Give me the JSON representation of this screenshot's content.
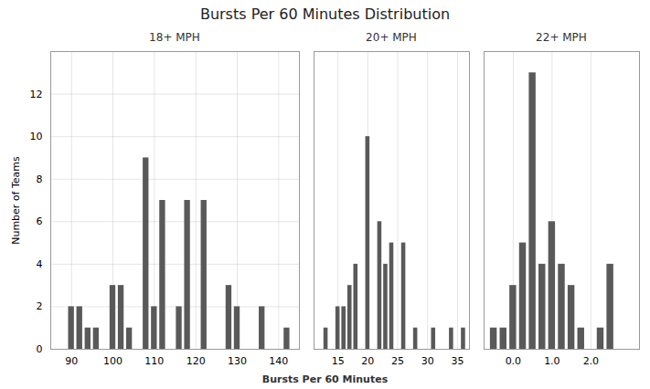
{
  "chart_data": [
    {
      "type": "bar",
      "title": "Bursts Per 60 Minutes Distribution",
      "subtitle": "18+ MPH",
      "xlabel": "Bursts Per 60 Minutes",
      "ylabel": "Number of Teams",
      "x": [
        88,
        90,
        92,
        94,
        96,
        98,
        100,
        102,
        104,
        106,
        108,
        110,
        112,
        114,
        116,
        118,
        120,
        122,
        124,
        126,
        128,
        130,
        132,
        134,
        136,
        138,
        140,
        142
      ],
      "values": [
        0,
        2,
        2,
        1,
        1,
        0,
        3,
        3,
        1,
        0,
        9,
        2,
        7,
        0,
        2,
        7,
        0,
        7,
        0,
        0,
        3,
        2,
        0,
        0,
        2,
        0,
        0,
        1
      ],
      "color": "#595959",
      "xlim": [
        85,
        145
      ],
      "xticks": [
        90,
        100,
        110,
        120,
        130,
        140
      ],
      "ylim": [
        0,
        14
      ],
      "yticks": [
        0,
        2,
        4,
        6,
        8,
        10,
        12
      ],
      "grid": true
    },
    {
      "type": "bar",
      "subtitle": "20+ MPH",
      "x": [
        13,
        14,
        15,
        16,
        17,
        18,
        19,
        20,
        21,
        22,
        23,
        24,
        25,
        26,
        27,
        28,
        29,
        30,
        31,
        32,
        33,
        34,
        35,
        36
      ],
      "values": [
        1,
        0,
        2,
        2,
        3,
        4,
        0,
        10,
        0,
        6,
        4,
        5,
        0,
        5,
        0,
        1,
        0,
        0,
        1,
        0,
        0,
        1,
        0,
        1
      ],
      "color": "#595959",
      "xlim": [
        11,
        37
      ],
      "xticks": [
        15,
        20,
        25,
        30,
        35
      ],
      "ylim": [
        0,
        14
      ],
      "grid": true,
      "tick_labels": "x"
    },
    {
      "type": "bar",
      "subtitle": "22+ MPH",
      "x": [
        -0.5,
        -0.25,
        0.0,
        0.25,
        0.5,
        0.75,
        1.0,
        1.25,
        1.5,
        1.75,
        2.0,
        2.25,
        2.5,
        2.75,
        3.0
      ],
      "values": [
        1,
        1,
        3,
        5,
        13,
        4,
        6,
        4,
        3,
        1,
        0,
        1,
        4,
        0,
        0
      ],
      "color": "#595959",
      "xlim": [
        -0.75,
        3.25
      ],
      "xticks": [
        0,
        1,
        2
      ],
      "ylim": [
        0,
        14
      ],
      "grid": true,
      "tick_labels": "x"
    }
  ]
}
